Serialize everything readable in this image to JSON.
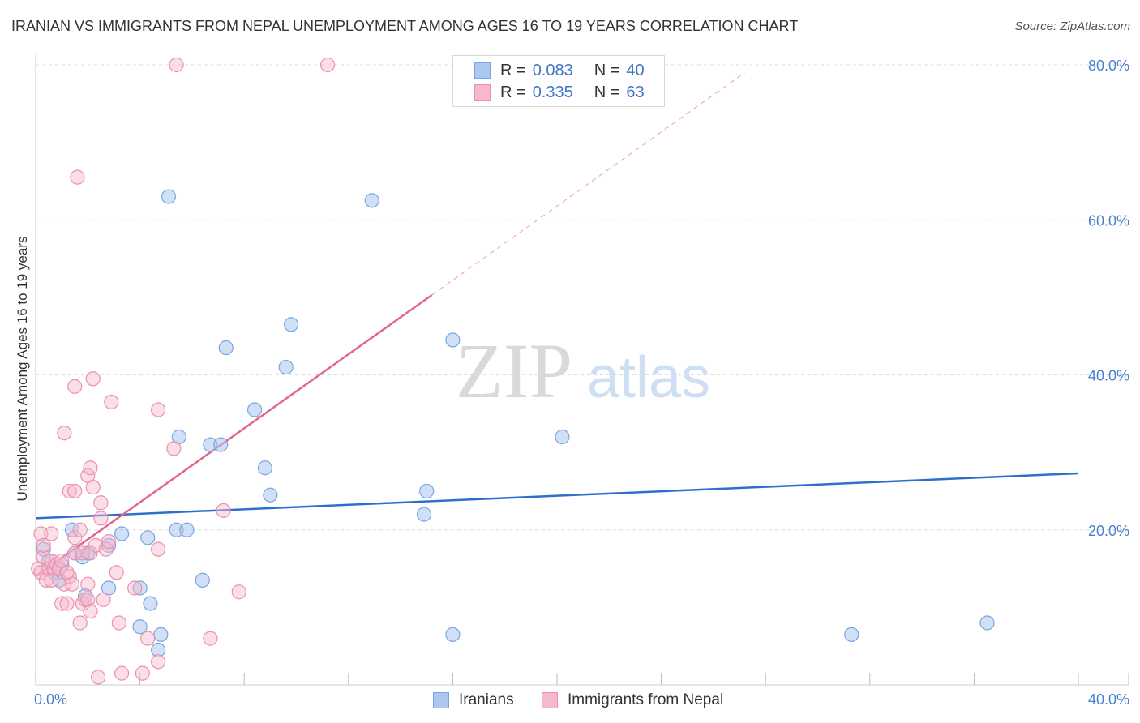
{
  "title": "IRANIAN VS IMMIGRANTS FROM NEPAL UNEMPLOYMENT AMONG AGES 16 TO 19 YEARS CORRELATION CHART",
  "source": "Source: ZipAtlas.com",
  "watermark": {
    "zip": "ZIP",
    "atlas": "atlas"
  },
  "legend": {
    "iranians": {
      "r_label": "R =",
      "r_value": "0.083",
      "n_label": "N =",
      "n_value": "40"
    },
    "nepal": {
      "r_label": "R =",
      "r_value": "0.335",
      "n_label": "N =",
      "n_value": "63"
    }
  },
  "bottom_legend": {
    "iranians": "Iranians",
    "nepal": "Immigrants from Nepal"
  },
  "colors": {
    "blue_fill": "#aac8f0",
    "blue_stroke": "#7aa6df",
    "blue_line": "#2f6fcc",
    "pink_fill": "#f6b8cc",
    "pink_stroke": "#ec90ac",
    "pink_line": "#e4658f",
    "tick_text": "#4a7fcf",
    "grid": "#dddddd"
  },
  "chart_data": {
    "type": "scatter",
    "title": "IRANIAN VS IMMIGRANTS FROM NEPAL UNEMPLOYMENT AMONG AGES 16 TO 19 YEARS CORRELATION CHART",
    "xlabel": "",
    "ylabel": "Unemployment Among Ages 16 to 19 years",
    "xlim": [
      0,
      40
    ],
    "ylim": [
      0,
      80
    ],
    "x_tick_labels": [
      "0.0%",
      "40.0%"
    ],
    "y_ticks": [
      20,
      40,
      60,
      80
    ],
    "y_tick_labels": [
      "20.0%",
      "40.0%",
      "60.0%",
      "80.0%"
    ],
    "series": [
      {
        "name": "Iranians",
        "r": 0.083,
        "n": 40,
        "trend": {
          "x": [
            0,
            40
          ],
          "y": [
            21.5,
            27.3
          ]
        },
        "points": [
          [
            0.3,
            17.5
          ],
          [
            0.5,
            16.0
          ],
          [
            0.7,
            14.5
          ],
          [
            0.9,
            13.5
          ],
          [
            1.0,
            15.5
          ],
          [
            1.4,
            20.0
          ],
          [
            1.5,
            17.0
          ],
          [
            1.8,
            16.5
          ],
          [
            1.9,
            11.5
          ],
          [
            2.0,
            17.0
          ],
          [
            2.8,
            18.0
          ],
          [
            2.8,
            12.5
          ],
          [
            3.3,
            19.5
          ],
          [
            4.0,
            12.5
          ],
          [
            4.0,
            7.5
          ],
          [
            4.3,
            19.0
          ],
          [
            4.4,
            10.5
          ],
          [
            4.7,
            4.5
          ],
          [
            4.8,
            6.5
          ],
          [
            5.1,
            63.0
          ],
          [
            5.4,
            20.0
          ],
          [
            5.5,
            32.0
          ],
          [
            5.8,
            20.0
          ],
          [
            6.4,
            13.5
          ],
          [
            6.7,
            31.0
          ],
          [
            7.1,
            31.0
          ],
          [
            7.3,
            43.5
          ],
          [
            8.4,
            35.5
          ],
          [
            8.8,
            28.0
          ],
          [
            9.0,
            24.5
          ],
          [
            9.6,
            41.0
          ],
          [
            9.8,
            46.5
          ],
          [
            12.9,
            62.5
          ],
          [
            14.9,
            22.0
          ],
          [
            15.0,
            25.0
          ],
          [
            16.0,
            6.5
          ],
          [
            16.0,
            44.5
          ],
          [
            20.2,
            32.0
          ],
          [
            31.3,
            6.5
          ],
          [
            36.5,
            8.0
          ]
        ]
      },
      {
        "name": "Immigrants from Nepal",
        "r": 0.335,
        "n": 63,
        "trend_solid": {
          "x": [
            0,
            15.2
          ],
          "y": [
            14.0,
            50.3
          ]
        },
        "trend_dashed": {
          "x": [
            15.2,
            27.2
          ],
          "y": [
            50.3,
            79.0
          ]
        },
        "points": [
          [
            0.1,
            15.0
          ],
          [
            0.2,
            19.5
          ],
          [
            0.2,
            14.5
          ],
          [
            0.3,
            16.5
          ],
          [
            0.3,
            18.0
          ],
          [
            0.4,
            13.5
          ],
          [
            0.5,
            15.0
          ],
          [
            0.6,
            16.0
          ],
          [
            0.6,
            19.5
          ],
          [
            0.7,
            15.0
          ],
          [
            0.8,
            15.5
          ],
          [
            0.9,
            15.0
          ],
          [
            1.0,
            10.5
          ],
          [
            1.0,
            16.0
          ],
          [
            1.1,
            13.0
          ],
          [
            1.1,
            32.5
          ],
          [
            1.2,
            10.5
          ],
          [
            1.3,
            14.0
          ],
          [
            1.3,
            25.0
          ],
          [
            1.4,
            13.0
          ],
          [
            1.5,
            25.0
          ],
          [
            1.5,
            19.0
          ],
          [
            1.5,
            17.0
          ],
          [
            1.5,
            38.5
          ],
          [
            1.6,
            65.5
          ],
          [
            1.7,
            8.0
          ],
          [
            1.7,
            20.0
          ],
          [
            1.8,
            10.5
          ],
          [
            1.8,
            17.0
          ],
          [
            1.9,
            11.0
          ],
          [
            2.0,
            27.0
          ],
          [
            2.0,
            13.0
          ],
          [
            2.0,
            11.0
          ],
          [
            2.1,
            17.0
          ],
          [
            2.1,
            9.5
          ],
          [
            2.1,
            28.0
          ],
          [
            2.2,
            39.5
          ],
          [
            2.2,
            25.5
          ],
          [
            2.3,
            18.0
          ],
          [
            2.4,
            1.0
          ],
          [
            2.5,
            21.5
          ],
          [
            2.5,
            23.5
          ],
          [
            2.6,
            11.0
          ],
          [
            2.7,
            17.5
          ],
          [
            2.8,
            18.5
          ],
          [
            2.9,
            36.5
          ],
          [
            3.1,
            14.5
          ],
          [
            3.2,
            8.0
          ],
          [
            3.3,
            1.5
          ],
          [
            3.8,
            12.5
          ],
          [
            4.1,
            1.5
          ],
          [
            4.3,
            6.0
          ],
          [
            4.7,
            3.0
          ],
          [
            4.7,
            17.5
          ],
          [
            4.7,
            35.5
          ],
          [
            5.3,
            30.5
          ],
          [
            5.4,
            80.0
          ],
          [
            6.7,
            6.0
          ],
          [
            7.2,
            22.5
          ],
          [
            7.8,
            12.0
          ],
          [
            11.2,
            80.0
          ],
          [
            0.6,
            13.5
          ],
          [
            1.2,
            14.5
          ]
        ]
      }
    ]
  }
}
